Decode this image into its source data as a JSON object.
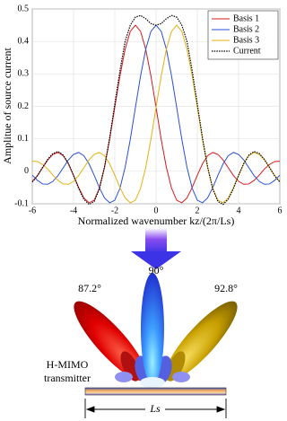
{
  "chart_data": {
    "type": "line",
    "xlabel": "Normalized wavenumber kz/(2π/Ls)",
    "ylabel": "Amplitue of source current",
    "x": [
      -6,
      -5.75,
      -5.5,
      -5.25,
      -5,
      -4.75,
      -4.5,
      -4.25,
      -4,
      -3.75,
      -3.5,
      -3.25,
      -3,
      -2.75,
      -2.5,
      -2.25,
      -2,
      -1.75,
      -1.5,
      -1.25,
      -1,
      -0.75,
      -0.5,
      -0.25,
      0,
      0.25,
      0.5,
      0.75,
      1,
      1.25,
      1.5,
      1.75,
      2,
      2.25,
      2.5,
      2.75,
      3,
      3.25,
      3.5,
      3.75,
      4,
      4.25,
      4.5,
      4.75,
      5,
      5.25,
      5.5,
      5.75,
      6
    ],
    "series": [
      {
        "name": "Basis 1",
        "color": "#d7191c",
        "dash": false,
        "values": [
          -0.031,
          -0.013,
          0.011,
          0.035,
          0.052,
          0.058,
          0.048,
          0.023,
          -0.012,
          -0.05,
          -0.082,
          -0.097,
          -0.089,
          -0.052,
          0.012,
          0.098,
          0.197,
          0.294,
          0.376,
          0.431,
          0.45,
          0.431,
          0.376,
          0.294,
          0.197,
          0.098,
          0.012,
          -0.052,
          -0.089,
          -0.097,
          -0.082,
          -0.05,
          -0.012,
          0.023,
          0.048,
          0.058,
          0.052,
          0.035,
          0.011,
          -0.013,
          -0.031,
          -0.04,
          -0.039,
          -0.028,
          -0.012,
          0.007,
          0.021,
          0.03,
          0.031
        ]
      },
      {
        "name": "Basis 2",
        "color": "#2b4fd9",
        "dash": false,
        "values": [
          -0.012,
          -0.028,
          -0.039,
          -0.04,
          -0.031,
          -0.013,
          0.011,
          0.035,
          0.052,
          0.058,
          0.048,
          0.023,
          -0.012,
          -0.05,
          -0.082,
          -0.097,
          -0.089,
          -0.052,
          0.012,
          0.098,
          0.197,
          0.294,
          0.376,
          0.431,
          0.45,
          0.431,
          0.376,
          0.294,
          0.197,
          0.098,
          0.012,
          -0.052,
          -0.089,
          -0.097,
          -0.082,
          -0.05,
          -0.012,
          0.023,
          0.048,
          0.058,
          0.052,
          0.035,
          0.011,
          -0.013,
          -0.031,
          -0.04,
          -0.039,
          -0.028,
          -0.012
        ]
      },
      {
        "name": "Basis 3",
        "color": "#e3b10e",
        "dash": false,
        "values": [
          0.031,
          0.03,
          0.021,
          0.007,
          -0.012,
          -0.028,
          -0.039,
          -0.04,
          -0.031,
          -0.013,
          0.011,
          0.035,
          0.052,
          0.058,
          0.048,
          0.023,
          -0.012,
          -0.05,
          -0.082,
          -0.097,
          -0.089,
          -0.052,
          0.012,
          0.098,
          0.197,
          0.294,
          0.376,
          0.431,
          0.45,
          0.431,
          0.376,
          0.294,
          0.197,
          0.098,
          0.012,
          -0.052,
          -0.089,
          -0.097,
          -0.082,
          -0.05,
          -0.012,
          0.023,
          0.048,
          0.058,
          0.052,
          0.035,
          0.011,
          -0.013,
          -0.031
        ]
      },
      {
        "name": "Current",
        "color": "#000000",
        "dash": true,
        "values": [
          -0.033,
          -0.014,
          0.012,
          0.037,
          0.055,
          0.061,
          0.05,
          0.024,
          -0.013,
          -0.053,
          -0.086,
          -0.102,
          -0.093,
          -0.055,
          0.013,
          0.103,
          0.207,
          0.31,
          0.4,
          0.45,
          0.475,
          0.48,
          0.47,
          0.455,
          0.45,
          0.455,
          0.47,
          0.48,
          0.475,
          0.45,
          0.4,
          0.31,
          0.207,
          0.103,
          0.013,
          -0.055,
          -0.093,
          -0.102,
          -0.086,
          -0.053,
          -0.013,
          0.024,
          0.05,
          0.061,
          0.055,
          0.037,
          0.012,
          -0.014,
          -0.033
        ]
      }
    ],
    "xlim": [
      -6,
      6
    ],
    "xticks": [
      -6,
      -4,
      -2,
      0,
      2,
      4,
      6
    ],
    "ylim": [
      -0.1,
      0.5
    ],
    "yticks": [
      -0.1,
      0,
      0.1,
      0.2,
      0.3,
      0.4,
      0.5
    ],
    "grid": true,
    "legend": "upper-right"
  },
  "diagram": {
    "angle_left": "87.2°",
    "angle_center": "90°",
    "angle_right": "92.8°",
    "transmitter": [
      "H-MIMO",
      "transmitter"
    ],
    "length": "Ls"
  }
}
